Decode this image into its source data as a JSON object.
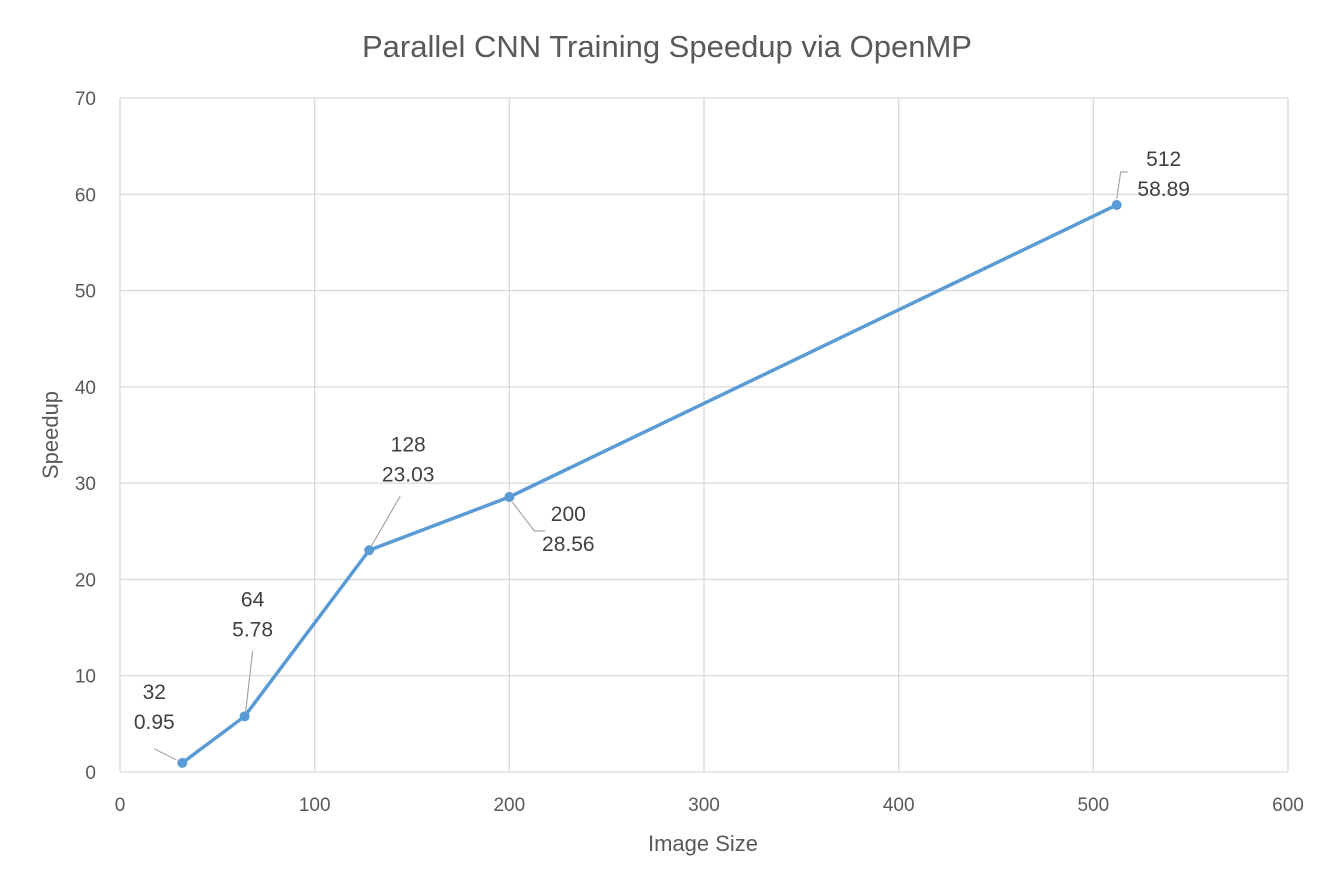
{
  "chart_data": {
    "type": "scatter",
    "title": "Parallel CNN Training Speedup via OpenMP",
    "xlabel": "Image Size",
    "ylabel": "Speedup",
    "xlim": [
      0,
      600
    ],
    "ylim": [
      0,
      70
    ],
    "x_ticks": [
      0,
      100,
      200,
      300,
      400,
      500,
      600
    ],
    "y_ticks": [
      0,
      10,
      20,
      30,
      40,
      50,
      60,
      70
    ],
    "grid": true,
    "legend": "none",
    "line_color": "#5b9bd5",
    "series": [
      {
        "points": [
          {
            "x": 32,
            "y": 0.95,
            "x_label": "32",
            "y_label": "0.95"
          },
          {
            "x": 64,
            "y": 5.78,
            "x_label": "64",
            "y_label": "5.78"
          },
          {
            "x": 128,
            "y": 23.03,
            "x_label": "128",
            "y_label": "23.03"
          },
          {
            "x": 200,
            "y": 28.56,
            "x_label": "200",
            "y_label": "28.56"
          },
          {
            "x": 512,
            "y": 58.89,
            "x_label": "512",
            "y_label": "58.89"
          }
        ]
      }
    ]
  }
}
